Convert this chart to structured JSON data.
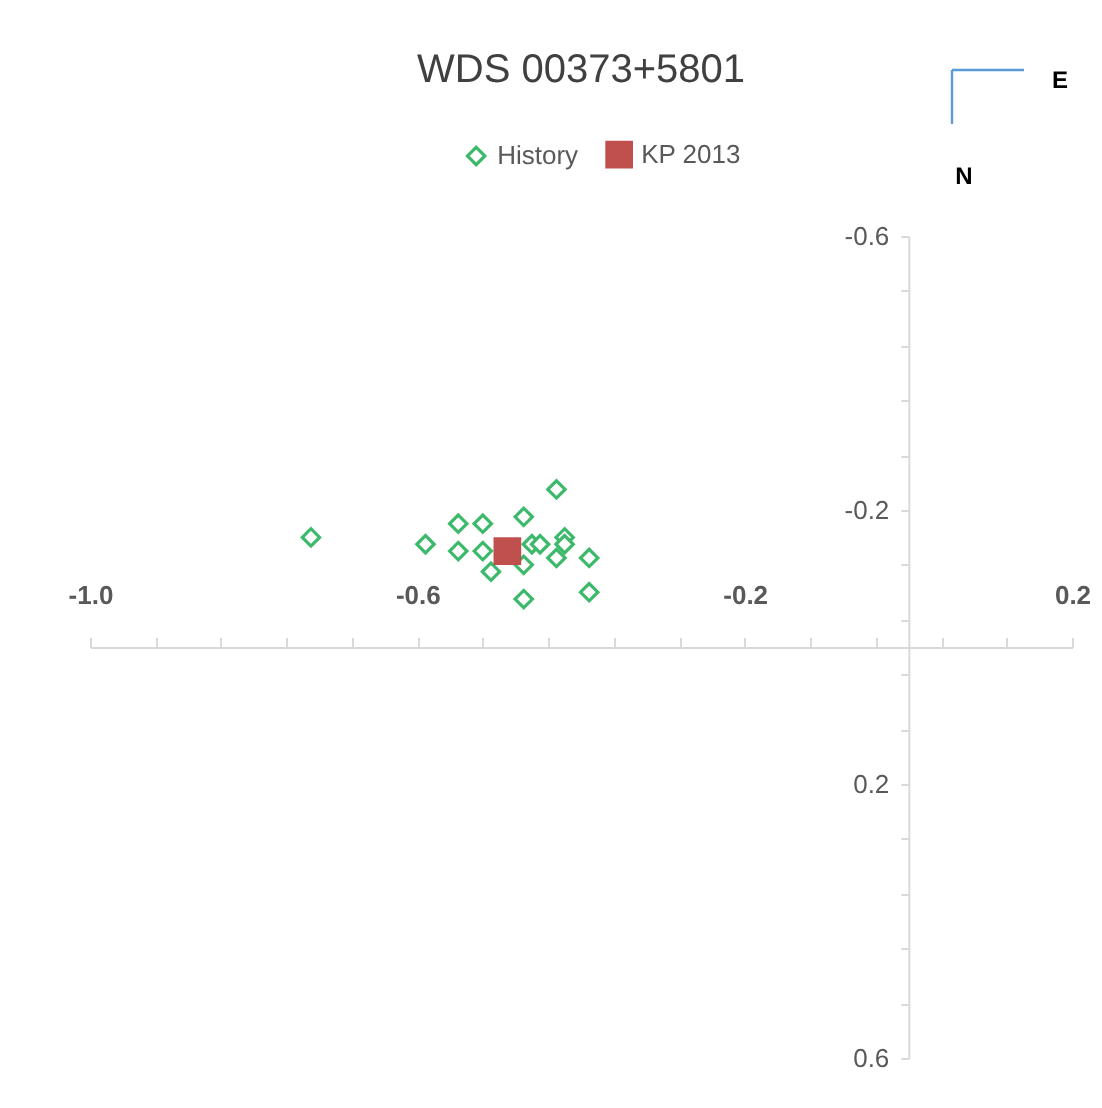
{
  "chart_data": {
    "type": "scatter",
    "title": "WDS 00373+5801",
    "series": [
      {
        "name": "History",
        "color": "#3cb96a",
        "marker": "diamond",
        "x": [
          -0.73,
          -0.59,
          -0.55,
          -0.55,
          -0.52,
          -0.52,
          -0.51,
          -0.47,
          -0.46,
          -0.45,
          -0.43,
          -0.42,
          -0.42,
          -0.43,
          -0.47,
          -0.39,
          -0.47,
          -0.39
        ],
        "values": [
          -0.16,
          -0.15,
          -0.18,
          -0.14,
          -0.18,
          -0.14,
          -0.11,
          -0.19,
          -0.15,
          -0.15,
          -0.23,
          -0.16,
          -0.15,
          -0.13,
          -0.12,
          -0.13,
          -0.07,
          -0.08
        ]
      },
      {
        "name": "KP 2013",
        "color": "#c0504d",
        "marker": "square",
        "x": [
          -0.49
        ],
        "values": [
          -0.14
        ]
      }
    ],
    "xlim": [
      -1.0,
      0.2
    ],
    "ylim": [
      0.6,
      -0.6
    ],
    "xticks": [
      {
        "value": -1.0,
        "label": "-1.0"
      },
      {
        "value": -0.92,
        "label": null
      },
      {
        "value": -0.84,
        "label": null
      },
      {
        "value": -0.76,
        "label": null
      },
      {
        "value": -0.68,
        "label": null
      },
      -0.6,
      {
        "value": -0.52,
        "label": null
      },
      {
        "value": -0.44,
        "label": null
      },
      {
        "value": -0.36,
        "label": null
      },
      {
        "value": -0.28,
        "label": null
      },
      -0.2,
      {
        "value": -0.12,
        "label": null
      },
      {
        "value": -0.04,
        "label": null
      },
      {
        "value": 0.04,
        "label": null
      },
      {
        "value": 0.12,
        "label": null
      },
      0.2
    ],
    "yticks": [
      -0.6,
      {
        "value": -0.52,
        "label": null
      },
      {
        "value": -0.44,
        "label": null
      },
      {
        "value": -0.36,
        "label": null
      },
      {
        "value": -0.28,
        "label": null
      },
      -0.2,
      {
        "value": -0.12,
        "label": null
      },
      {
        "value": -0.04,
        "label": null
      },
      {
        "value": 0.04,
        "label": null
      },
      {
        "value": 0.12,
        "label": null
      },
      0.2,
      {
        "value": 0.28,
        "label": null
      },
      {
        "value": 0.36,
        "label": null
      },
      {
        "value": 0.44,
        "label": null
      },
      {
        "value": 0.52,
        "label": null
      },
      0.6
    ],
    "grid": false,
    "legend": "top",
    "annotations": [
      "E",
      "N"
    ]
  }
}
